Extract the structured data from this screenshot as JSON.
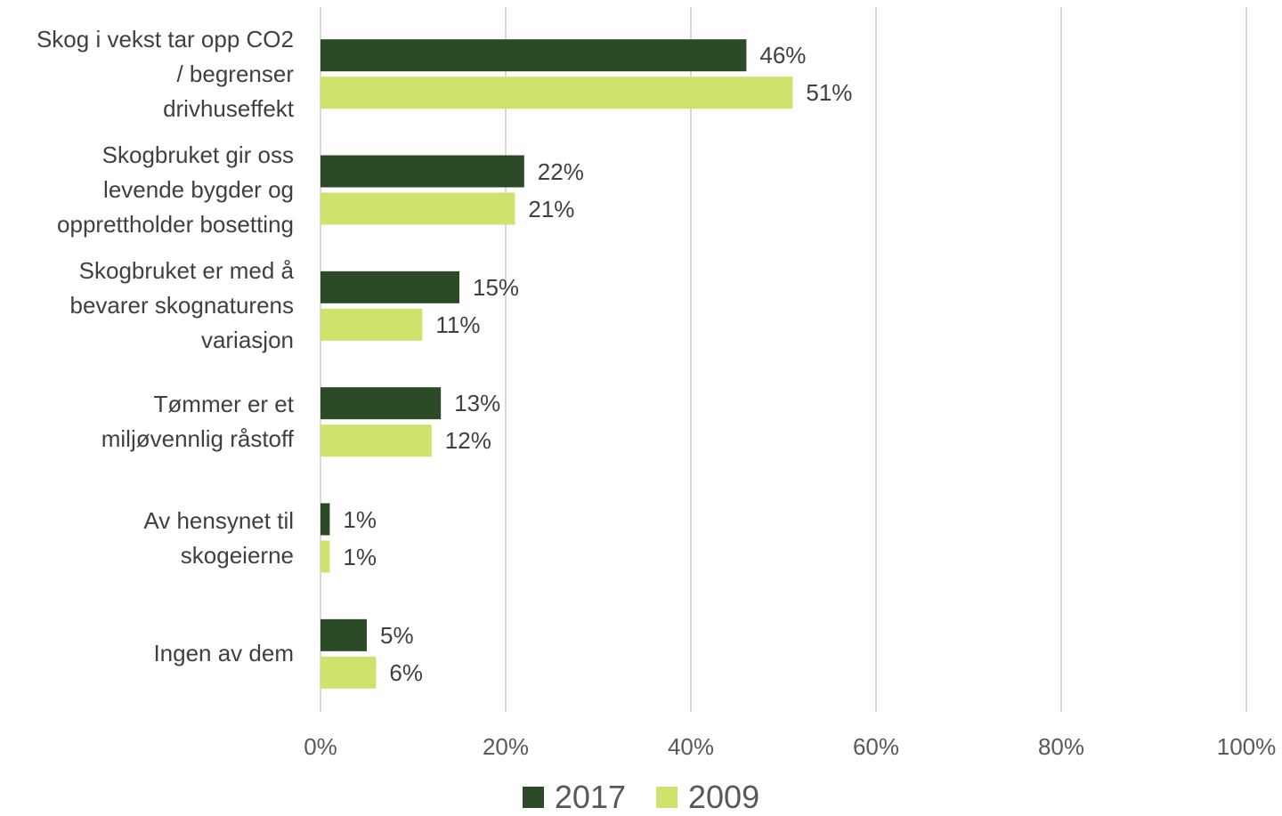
{
  "chart_data": {
    "type": "bar",
    "orientation": "horizontal",
    "categories": [
      "Skog i vekst tar opp CO2\n/ begrenser\ndrivhuseffekt",
      "Skogbruket gir oss\nlevende bygder og\nopprettholder bosetting",
      "Skogbruket er med å\nbevarer skognaturens\nvariasjon",
      "Tømmer er et\nmiljøvennlig råstoff",
      "Av hensynet til\nskogeierne",
      "Ingen av dem"
    ],
    "series": [
      {
        "name": "2017",
        "color": "#2b4a26",
        "values": [
          46,
          22,
          15,
          13,
          1,
          5
        ],
        "labels": [
          "46%",
          "22%",
          "15%",
          "13%",
          "1%",
          "5%"
        ]
      },
      {
        "name": "2009",
        "color": "#cfe26b",
        "values": [
          51,
          21,
          11,
          12,
          1,
          6
        ],
        "labels": [
          "51%",
          "21%",
          "11%",
          "12%",
          "1%",
          "6%"
        ]
      }
    ],
    "xlim": [
      0,
      100
    ],
    "x_ticks": [
      "0%",
      "20%",
      "40%",
      "60%",
      "80%",
      "100%"
    ],
    "grid": true,
    "legend_position": "bottom"
  }
}
